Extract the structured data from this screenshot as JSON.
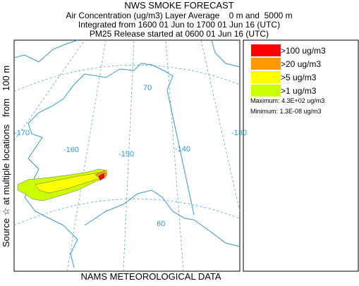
{
  "header": {
    "title": "NWS SMOKE FORECAST",
    "subtitle": "Air Concentration (ug/m3) Layer Average    0 m and  5000 m",
    "integration": "Integrated from 1600 01 Jun to 1700 01 Jun 16 (UTC)",
    "release": "PM25 Release started at 0600 01 Jun 16 (UTC)"
  },
  "legend": {
    "items": [
      {
        "label": ">100 ug/m3",
        "color": "#ff0000"
      },
      {
        "label": ">20 ug/m3",
        "color": "#ff9900"
      },
      {
        "label": ">5 ug/m3",
        "color": "#ffff00"
      },
      {
        "label": ">1 ug/m3",
        "color": "#ccff00"
      }
    ],
    "maximum": "Maximum: 4.3E+02 ug/m3",
    "minimum": "Minimum: 1.3E-08 ug/m3"
  },
  "source_label": "Source ☆ at multiple locations   from   100 m",
  "footer": "NAMS METEOROLOGICAL DATA",
  "map": {
    "grid_labels": [
      "-170",
      "-160",
      "-150",
      "-140",
      "-130",
      "70",
      "60"
    ]
  }
}
